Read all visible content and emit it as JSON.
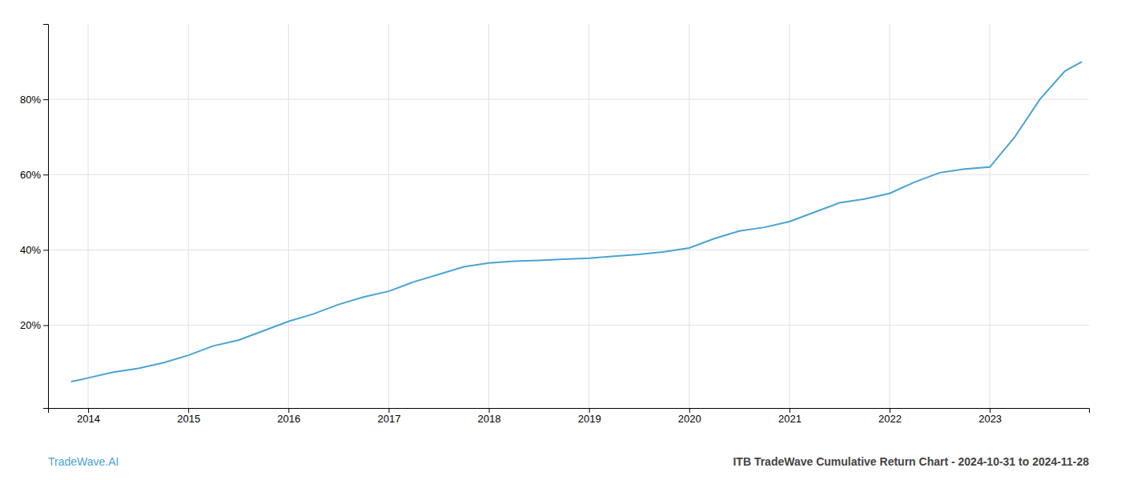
{
  "chart_data": {
    "type": "line",
    "title": "ITB TradeWave Cumulative Return Chart - 2024-10-31 to 2024-11-28",
    "subtitle": "TradeWave.AI",
    "color": "#4aa3d4",
    "x": [
      2013.83,
      2013.92,
      2014.0,
      2014.25,
      2014.5,
      2014.75,
      2015.0,
      2015.25,
      2015.5,
      2015.75,
      2016.0,
      2016.25,
      2016.5,
      2016.75,
      2017.0,
      2017.25,
      2017.5,
      2017.75,
      2018.0,
      2018.25,
      2018.5,
      2018.75,
      2019.0,
      2019.25,
      2019.5,
      2019.75,
      2020.0,
      2020.25,
      2020.5,
      2020.75,
      2021.0,
      2021.25,
      2021.5,
      2021.75,
      2022.0,
      2022.25,
      2022.5,
      2022.75,
      2023.0,
      2023.25,
      2023.5,
      2023.75,
      2023.92
    ],
    "values": [
      5.0,
      5.5,
      6.0,
      7.5,
      8.5,
      10.0,
      12.0,
      14.5,
      16.0,
      18.5,
      21.0,
      23.0,
      25.5,
      27.5,
      29.0,
      31.5,
      33.5,
      35.5,
      36.5,
      37.0,
      37.2,
      37.5,
      37.8,
      38.3,
      38.8,
      39.5,
      40.5,
      43.0,
      45.0,
      46.0,
      47.5,
      50.0,
      52.5,
      53.5,
      55.0,
      58.0,
      60.5,
      61.5,
      62.0,
      70.0,
      80.0,
      87.5,
      90.0
    ],
    "xlim": [
      2013.6,
      2023.99
    ],
    "xticks": [
      2014,
      2015,
      2016,
      2017,
      2018,
      2019,
      2020,
      2021,
      2022,
      2023
    ],
    "ylim": [
      -2,
      100
    ],
    "yticks": [
      {
        "value": 20,
        "label": "20%"
      },
      {
        "value": 40,
        "label": "40%"
      },
      {
        "value": 60,
        "label": "60%"
      },
      {
        "value": 80,
        "label": "80%"
      }
    ],
    "grid": true
  }
}
